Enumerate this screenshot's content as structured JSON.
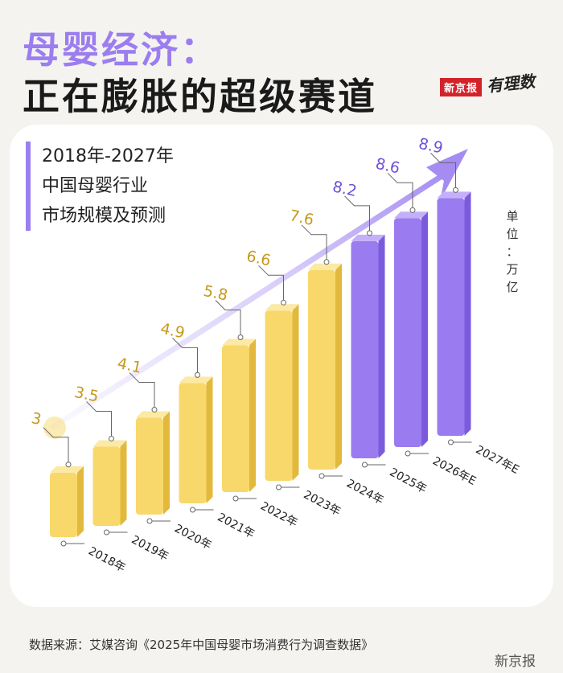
{
  "header": {
    "title_line1": "母婴经济：",
    "title_line2": "正在膨胀的超级赛道",
    "brand_box": "新京报",
    "brand_script": "有理数"
  },
  "chart_data": {
    "type": "bar",
    "title_lines": [
      "2018年-2027年",
      "中国母婴行业",
      "市场规模及预测"
    ],
    "unit_lines": [
      "单",
      "位",
      "：",
      "万",
      "亿"
    ],
    "categories": [
      "2018年",
      "2019年",
      "2020年",
      "2021年",
      "2022年",
      "2023年",
      "2024年",
      "2025年",
      "2026年E",
      "2027年E"
    ],
    "values": [
      3,
      3.5,
      4.1,
      4.9,
      5.8,
      6.6,
      7.6,
      8.2,
      8.6,
      8.9
    ],
    "value_labels": [
      "3",
      "3.5",
      "4.1",
      "4.9",
      "5.8",
      "6.6",
      "7.6",
      "8.2",
      "8.6",
      "8.9"
    ],
    "colors": {
      "yellow_front": "#f8d86a",
      "yellow_side": "#e2b93c",
      "yellow_top": "#fce9a4",
      "purple_front": "#9a7bf0",
      "purple_side": "#7b5bdb",
      "purple_top": "#c4b0fa",
      "arrow": "#a58cf2"
    },
    "purple_from_index": 7
  },
  "footer": {
    "source": "数据来源：艾媒咨询《2025年中国母婴市场消费行为调查数据》",
    "watermark": "新京报"
  }
}
